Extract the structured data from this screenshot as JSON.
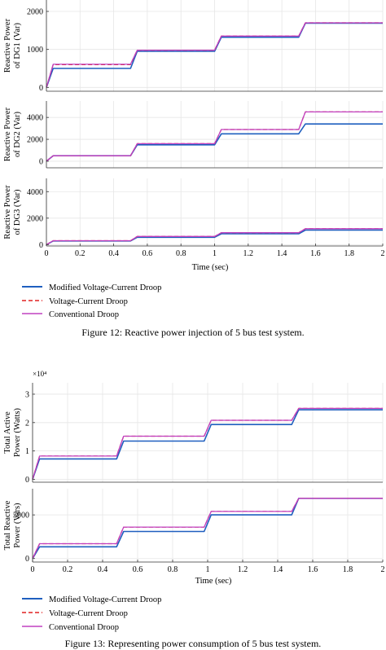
{
  "figures": [
    {
      "caption": "Figure 12: Reactive power injection of 5 bus test system.",
      "xlabel": "Time (sec)",
      "legend": [
        "Modified Voltage-Current Droop",
        "Voltage-Current Droop",
        "Conventional Droop"
      ]
    },
    {
      "caption": "Figure 13: Representing power consumption of 5 bus test system.",
      "xlabel": "Time (sec)",
      "legend": [
        "Modified Voltage-Current Droop",
        "Voltage-Current Droop",
        "Conventional Droop"
      ]
    }
  ],
  "colors": {
    "modified": "#1f5fbf",
    "vc": "#e02020",
    "conventional": "#c040c0",
    "grid": "#e6e6e6",
    "axis": "#333333"
  },
  "chart_data": [
    {
      "type": "line",
      "ylabel": "Reactive Power of DG1 (Var)",
      "xlim": [
        0,
        2
      ],
      "ylim": [
        -100,
        2300
      ],
      "yticks": [
        0,
        1000,
        2000
      ],
      "xticks": [],
      "series": [
        {
          "name": "Modified Voltage-Current Droop",
          "steps": [
            [
              0,
              0
            ],
            [
              0.04,
              500
            ],
            [
              0.5,
              500
            ],
            [
              0.54,
              950
            ],
            [
              1.0,
              950
            ],
            [
              1.04,
              1320
            ],
            [
              1.5,
              1320
            ],
            [
              1.54,
              1690
            ],
            [
              2.0,
              1690
            ]
          ]
        },
        {
          "name": "Voltage-Current Droop",
          "steps": [
            [
              0,
              0
            ],
            [
              0.04,
              600
            ],
            [
              0.5,
              600
            ],
            [
              0.54,
              980
            ],
            [
              1.0,
              980
            ],
            [
              1.04,
              1350
            ],
            [
              1.5,
              1350
            ],
            [
              1.54,
              1700
            ],
            [
              2.0,
              1700
            ]
          ]
        },
        {
          "name": "Conventional Droop",
          "steps": [
            [
              0,
              0
            ],
            [
              0.04,
              610
            ],
            [
              0.5,
              610
            ],
            [
              0.54,
              980
            ],
            [
              1.0,
              980
            ],
            [
              1.04,
              1350
            ],
            [
              1.5,
              1350
            ],
            [
              1.54,
              1700
            ],
            [
              2.0,
              1700
            ]
          ]
        }
      ]
    },
    {
      "type": "line",
      "ylabel": "Reactive Power of DG2 (Var)",
      "xlim": [
        0,
        2
      ],
      "ylim": [
        -600,
        5500
      ],
      "yticks": [
        0,
        2000,
        4000
      ],
      "xticks": [],
      "series": [
        {
          "name": "Modified Voltage-Current Droop",
          "steps": [
            [
              0,
              0
            ],
            [
              0.04,
              500
            ],
            [
              0.5,
              500
            ],
            [
              0.54,
              1500
            ],
            [
              1.0,
              1500
            ],
            [
              1.04,
              2500
            ],
            [
              1.5,
              2500
            ],
            [
              1.54,
              3400
            ],
            [
              2.0,
              3400
            ]
          ]
        },
        {
          "name": "Voltage-Current Droop",
          "steps": [
            [
              0,
              0
            ],
            [
              0.04,
              500
            ],
            [
              0.5,
              500
            ],
            [
              0.54,
              1600
            ],
            [
              1.0,
              1600
            ],
            [
              1.04,
              2900
            ],
            [
              1.5,
              2900
            ],
            [
              1.54,
              4500
            ],
            [
              2.0,
              4500
            ]
          ]
        },
        {
          "name": "Conventional Droop",
          "steps": [
            [
              0,
              0
            ],
            [
              0.04,
              500
            ],
            [
              0.5,
              500
            ],
            [
              0.54,
              1600
            ],
            [
              1.0,
              1600
            ],
            [
              1.04,
              2900
            ],
            [
              1.5,
              2900
            ],
            [
              1.54,
              4500
            ],
            [
              2.0,
              4500
            ]
          ]
        }
      ]
    },
    {
      "type": "line",
      "ylabel": "Reactive Power of DG3 (Var)",
      "xlim": [
        0,
        2
      ],
      "ylim": [
        -100,
        5000
      ],
      "yticks": [
        0,
        2000,
        4000
      ],
      "xticks": [
        0,
        0.2,
        0.4,
        0.6,
        0.8,
        1,
        1.2,
        1.4,
        1.6,
        1.8,
        2
      ],
      "series": [
        {
          "name": "Modified Voltage-Current Droop",
          "steps": [
            [
              0,
              0
            ],
            [
              0.04,
              280
            ],
            [
              0.5,
              280
            ],
            [
              0.54,
              560
            ],
            [
              1.0,
              560
            ],
            [
              1.04,
              820
            ],
            [
              1.5,
              820
            ],
            [
              1.54,
              1100
            ],
            [
              2.0,
              1100
            ]
          ]
        },
        {
          "name": "Voltage-Current Droop",
          "steps": [
            [
              0,
              0
            ],
            [
              0.04,
              300
            ],
            [
              0.5,
              300
            ],
            [
              0.54,
              620
            ],
            [
              1.0,
              620
            ],
            [
              1.04,
              900
            ],
            [
              1.5,
              900
            ],
            [
              1.54,
              1200
            ],
            [
              2.0,
              1200
            ]
          ]
        },
        {
          "name": "Conventional Droop",
          "steps": [
            [
              0,
              0
            ],
            [
              0.04,
              300
            ],
            [
              0.5,
              300
            ],
            [
              0.54,
              620
            ],
            [
              1.0,
              620
            ],
            [
              1.04,
              900
            ],
            [
              1.5,
              900
            ],
            [
              1.54,
              1200
            ],
            [
              2.0,
              1200
            ]
          ]
        }
      ]
    },
    {
      "type": "line",
      "ylabel": "Total Active Power (Watts)",
      "scale_label": "×10⁴",
      "xlim": [
        0,
        2
      ],
      "ylim": [
        -0.1,
        3.4
      ],
      "yticks": [
        0,
        1,
        2,
        3
      ],
      "xticks": [],
      "series": [
        {
          "name": "Modified Voltage-Current Droop",
          "steps": [
            [
              0,
              0
            ],
            [
              0.04,
              0.72
            ],
            [
              0.48,
              0.72
            ],
            [
              0.52,
              1.35
            ],
            [
              0.98,
              1.35
            ],
            [
              1.02,
              1.93
            ],
            [
              1.48,
              1.93
            ],
            [
              1.52,
              2.45
            ],
            [
              2.0,
              2.45
            ]
          ]
        },
        {
          "name": "Voltage-Current Droop",
          "steps": [
            [
              0,
              0
            ],
            [
              0.04,
              0.82
            ],
            [
              0.48,
              0.82
            ],
            [
              0.52,
              1.52
            ],
            [
              0.98,
              1.52
            ],
            [
              1.02,
              2.08
            ],
            [
              1.48,
              2.08
            ],
            [
              1.52,
              2.5
            ],
            [
              2.0,
              2.5
            ]
          ]
        },
        {
          "name": "Conventional Droop",
          "steps": [
            [
              0,
              0
            ],
            [
              0.04,
              0.82
            ],
            [
              0.48,
              0.82
            ],
            [
              0.52,
              1.52
            ],
            [
              0.98,
              1.52
            ],
            [
              1.02,
              2.08
            ],
            [
              1.48,
              2.08
            ],
            [
              1.52,
              2.5
            ],
            [
              2.0,
              2.5
            ]
          ]
        }
      ]
    },
    {
      "type": "line",
      "ylabel": "Total Reactive Power (Vars)",
      "xlim": [
        0,
        2
      ],
      "ylim": [
        -400,
        8000
      ],
      "yticks": [
        0,
        5000
      ],
      "xticks": [
        0,
        0.2,
        0.4,
        0.6,
        0.8,
        1,
        1.2,
        1.4,
        1.6,
        1.8,
        2
      ],
      "series": [
        {
          "name": "Modified Voltage-Current Droop",
          "steps": [
            [
              0,
              0
            ],
            [
              0.04,
              1350
            ],
            [
              0.48,
              1350
            ],
            [
              0.52,
              3100
            ],
            [
              0.98,
              3100
            ],
            [
              1.02,
              5000
            ],
            [
              1.48,
              5000
            ],
            [
              1.52,
              6900
            ],
            [
              2.0,
              6900
            ]
          ]
        },
        {
          "name": "Voltage-Current Droop",
          "steps": [
            [
              0,
              0
            ],
            [
              0.04,
              1700
            ],
            [
              0.48,
              1700
            ],
            [
              0.52,
              3600
            ],
            [
              0.98,
              3600
            ],
            [
              1.02,
              5400
            ],
            [
              1.48,
              5400
            ],
            [
              1.52,
              6900
            ],
            [
              2.0,
              6900
            ]
          ]
        },
        {
          "name": "Conventional Droop",
          "steps": [
            [
              0,
              0
            ],
            [
              0.04,
              1700
            ],
            [
              0.48,
              1700
            ],
            [
              0.52,
              3600
            ],
            [
              0.98,
              3600
            ],
            [
              1.02,
              5400
            ],
            [
              1.48,
              5400
            ],
            [
              1.52,
              6900
            ],
            [
              2.0,
              6900
            ]
          ]
        }
      ]
    }
  ]
}
